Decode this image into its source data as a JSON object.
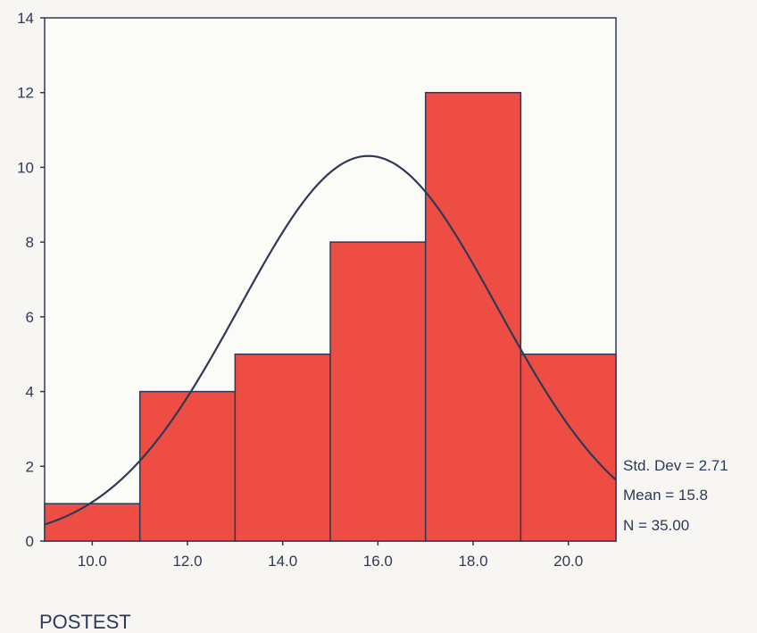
{
  "chart_data": {
    "type": "bar",
    "subtype": "histogram",
    "xlabel": "POSTEST",
    "ylabel": "",
    "title": "",
    "bins": [
      {
        "from": 9.0,
        "to": 11.0,
        "count": 1
      },
      {
        "from": 11.0,
        "to": 13.0,
        "count": 4
      },
      {
        "from": 13.0,
        "to": 15.0,
        "count": 5
      },
      {
        "from": 15.0,
        "to": 17.0,
        "count": 8
      },
      {
        "from": 17.0,
        "to": 19.0,
        "count": 12
      },
      {
        "from": 19.0,
        "to": 21.0,
        "count": 5
      }
    ],
    "xlim": [
      9.0,
      21.0
    ],
    "ylim": [
      0,
      14
    ],
    "x_ticks": [
      "10.0",
      "12.0",
      "14.0",
      "16.0",
      "18.0",
      "20.0"
    ],
    "x_tick_values": [
      10,
      12,
      14,
      16,
      18,
      20
    ],
    "y_ticks": [
      "0",
      "2",
      "4",
      "6",
      "8",
      "10",
      "12",
      "14"
    ],
    "y_tick_values": [
      0,
      2,
      4,
      6,
      8,
      10,
      12,
      14
    ],
    "normal_curve": {
      "mean": 15.8,
      "std_dev": 2.71,
      "n": 35,
      "bin_width": 2
    },
    "stats": {
      "std_dev": "Std. Dev = 2.71",
      "mean": "Mean = 15.8",
      "n": "N = 35.00"
    },
    "grid": false,
    "colors": {
      "bar_fill": "#ee4d44",
      "bar_stroke": "#2e3a55",
      "curve": "#2e3a55",
      "axis": "#2e3a55",
      "text": "#2b3a5a"
    }
  }
}
